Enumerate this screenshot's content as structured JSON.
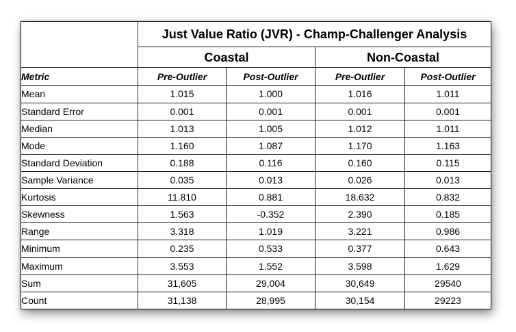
{
  "title": "Just Value Ratio (JVR) - Champ-Challenger Analysis",
  "groups": [
    "Coastal",
    "Non-Coastal"
  ],
  "columns": {
    "metric": "Metric",
    "pre": "Pre-Outlier",
    "post": "Post-Outlier"
  },
  "rows": [
    {
      "metric": "Mean",
      "values": [
        "1.015",
        "1.000",
        "1.016",
        "1.011"
      ]
    },
    {
      "metric": "Standard Error",
      "values": [
        "0.001",
        "0.001",
        "0.001",
        "0.001"
      ]
    },
    {
      "metric": "Median",
      "values": [
        "1.013",
        "1.005",
        "1.012",
        "1.011"
      ]
    },
    {
      "metric": "Mode",
      "values": [
        "1.160",
        "1.087",
        "1.170",
        "1.163"
      ]
    },
    {
      "metric": "Standard Deviation",
      "values": [
        "0.188",
        "0.116",
        "0.160",
        "0.115"
      ]
    },
    {
      "metric": "Sample Variance",
      "values": [
        "0.035",
        "0.013",
        "0.026",
        "0.013"
      ]
    },
    {
      "metric": "Kurtosis",
      "values": [
        "11.810",
        "0.881",
        "18.632",
        "0.832"
      ]
    },
    {
      "metric": "Skewness",
      "values": [
        "1.563",
        "-0.352",
        "2.390",
        "0.185"
      ]
    },
    {
      "metric": "Range",
      "values": [
        "3.318",
        "1.019",
        "3.221",
        "0.986"
      ]
    },
    {
      "metric": "Minimum",
      "values": [
        "0.235",
        "0.533",
        "0.377",
        "0.643"
      ]
    },
    {
      "metric": "Maximum",
      "values": [
        "3.553",
        "1.552",
        "3.598",
        "1.629"
      ]
    },
    {
      "metric": "Sum",
      "values": [
        "31,605",
        "29,004",
        "30,649",
        "29540"
      ]
    },
    {
      "metric": "Count",
      "values": [
        "31,138",
        "28,995",
        "30,154",
        "29223"
      ]
    }
  ]
}
